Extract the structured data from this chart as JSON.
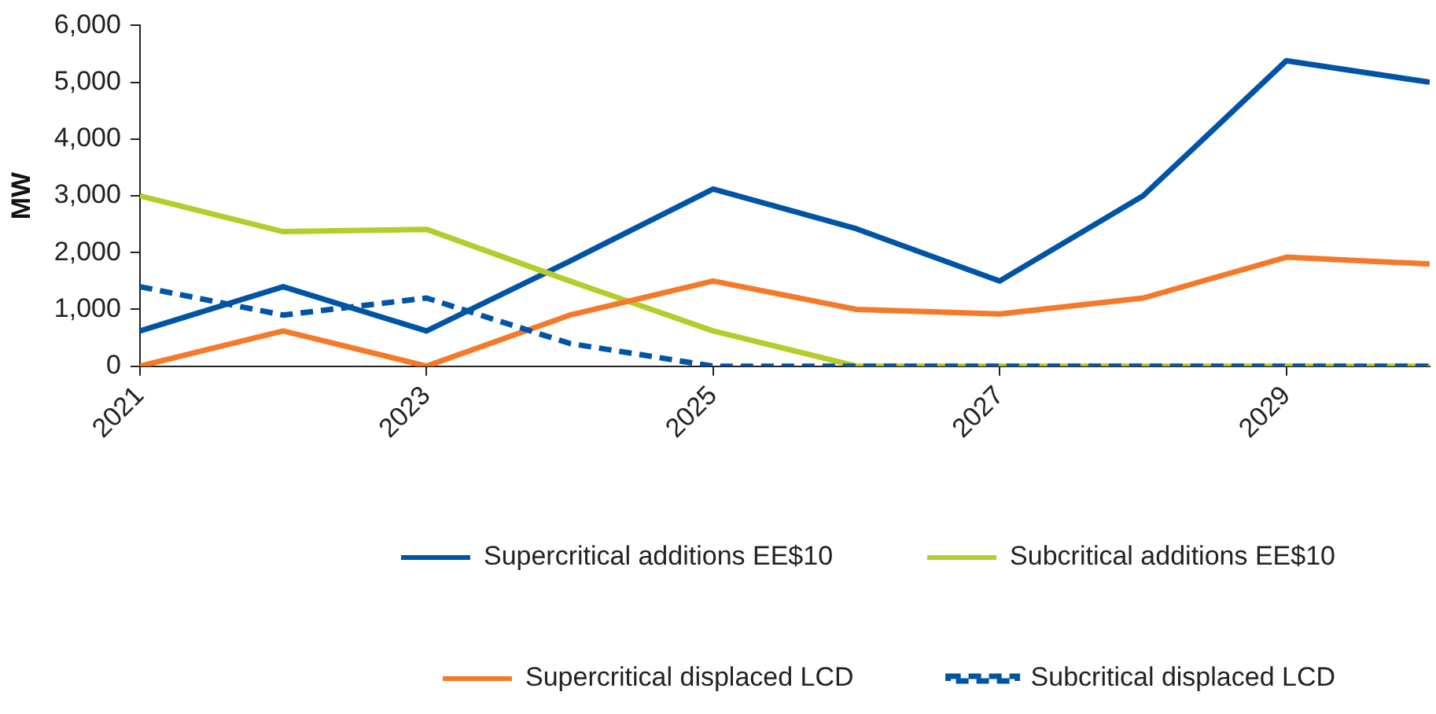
{
  "chart_data": {
    "type": "line",
    "ylabel": "MW",
    "x": [
      2021,
      2022,
      2023,
      2024,
      2025,
      2026,
      2027,
      2028,
      2029,
      2030
    ],
    "xlim": [
      2021,
      2030
    ],
    "xticks": [
      2021,
      2023,
      2025,
      2027,
      2029
    ],
    "ylim": [
      0,
      6000
    ],
    "yticks": [
      0,
      {
        "value": 1000,
        "label": "1,000"
      },
      {
        "value": 2000,
        "label": "2,000"
      },
      {
        "value": 3000,
        "label": "3,000"
      },
      {
        "value": 4000,
        "label": "4,000"
      },
      {
        "value": 5000,
        "label": "5,000"
      },
      {
        "value": 6000,
        "label": "6,000"
      }
    ],
    "series": [
      {
        "name": "Supercritical additions EE$10",
        "color": "#0054a6",
        "line_style": "solid",
        "values": [
          620,
          1400,
          620,
          1850,
          3120,
          2420,
          1500,
          3000,
          5380,
          5000
        ]
      },
      {
        "name": "Subcritical additions EE$10",
        "color": "#b5cc2b",
        "line_style": "solid",
        "values": [
          3000,
          2370,
          2410,
          1500,
          620,
          0,
          0,
          0,
          0,
          0
        ]
      },
      {
        "name": "Supercritical displaced LCD",
        "color": "#f47a2a",
        "line_style": "solid",
        "values": [
          0,
          620,
          0,
          900,
          1500,
          1000,
          920,
          1200,
          1920,
          1800
        ]
      },
      {
        "name": "Subcritical displaced LCD",
        "color": "#0054a6",
        "line_style": "dashed",
        "values": [
          1400,
          900,
          1200,
          400,
          0,
          0,
          0,
          0,
          0,
          0
        ]
      }
    ],
    "grid": false,
    "legend": "bottom",
    "marker": "none"
  }
}
